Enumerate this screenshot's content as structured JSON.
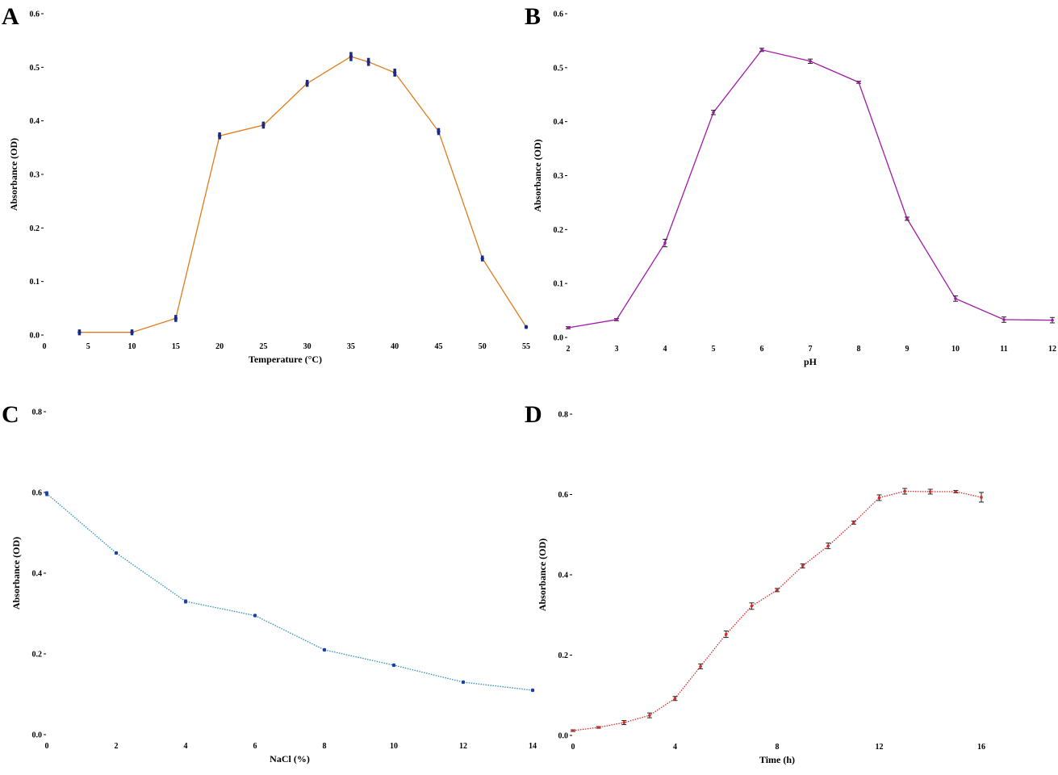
{
  "chart_data": [
    {
      "panel": "A",
      "type": "line",
      "xlabel": "Temperature (°C)",
      "ylabel": "Absorbance (OD)",
      "xlim": [
        0,
        55
      ],
      "ylim": [
        0,
        0.6
      ],
      "xticks": [
        0,
        5,
        10,
        15,
        20,
        25,
        30,
        35,
        40,
        45,
        50,
        55
      ],
      "xtick_labels": [
        "0",
        "5",
        "10",
        "15",
        "20",
        "25",
        "30",
        "35",
        "40",
        "45",
        "50",
        "55"
      ],
      "yticks": [
        0,
        0.1,
        0.2,
        0.3,
        0.4,
        0.5,
        0.6
      ],
      "ytick_labels": [
        "0.0",
        "0.1",
        "0.2",
        "0.3",
        "0.4",
        "0.5",
        "0.6"
      ],
      "color": "#e07b1b",
      "marker_color": "#1a2a8a",
      "x": [
        4,
        10,
        15,
        20,
        25,
        30,
        35,
        37,
        40,
        45,
        50,
        55
      ],
      "y": [
        0.005,
        0.005,
        0.031,
        0.372,
        0.392,
        0.47,
        0.52,
        0.51,
        0.49,
        0.38,
        0.143,
        0.015
      ],
      "err": [
        0.004,
        0.004,
        0.005,
        0.005,
        0.005,
        0.005,
        0.007,
        0.006,
        0.006,
        0.005,
        0.004,
        0.002
      ]
    },
    {
      "panel": "B",
      "type": "line",
      "xlabel": "pH",
      "ylabel": "Absorbance (OD)",
      "xlim": [
        2,
        12
      ],
      "ylim": [
        0,
        0.6
      ],
      "xticks": [
        2,
        3,
        4,
        5,
        6,
        7,
        8,
        9,
        10,
        11,
        12
      ],
      "xtick_labels": [
        "2",
        "3",
        "4",
        "5",
        "6",
        "7",
        "8",
        "9",
        "10",
        "11",
        "12"
      ],
      "yticks": [
        0,
        0.1,
        0.2,
        0.3,
        0.4,
        0.5,
        0.6
      ],
      "ytick_labels": [
        "0.0",
        "0.1",
        "0.2",
        "0.3",
        "0.4",
        "0.5",
        "0.6"
      ],
      "color": "#a01aa6",
      "marker_color": "#222222",
      "x": [
        2,
        3,
        4,
        5,
        6,
        7,
        8,
        9,
        10,
        11,
        12
      ],
      "y": [
        0.018,
        0.033,
        0.175,
        0.417,
        0.533,
        0.512,
        0.473,
        0.22,
        0.072,
        0.033,
        0.032
      ],
      "err": [
        0.002,
        0.002,
        0.007,
        0.004,
        0.003,
        0.004,
        0.002,
        0.003,
        0.005,
        0.005,
        0.005
      ]
    },
    {
      "panel": "C",
      "type": "line",
      "xlabel": "NaCl (%)",
      "ylabel": "Absorbance (OD)",
      "xlim": [
        0,
        14
      ],
      "ylim": [
        0,
        0.8
      ],
      "xticks": [
        0,
        2,
        4,
        6,
        8,
        10,
        12,
        14
      ],
      "xtick_labels": [
        "0",
        "2",
        "4",
        "6",
        "8",
        "10",
        "12",
        "14"
      ],
      "yticks": [
        0,
        0.2,
        0.4,
        0.6,
        0.8
      ],
      "ytick_labels": [
        "0.0",
        "0.2",
        "0.4",
        "0.6",
        "0.8"
      ],
      "color": "#2a8fb5",
      "marker_color": "#1a3fa8",
      "x": [
        0,
        2,
        4,
        6,
        8,
        10,
        12,
        14
      ],
      "y": [
        0.597,
        0.45,
        0.33,
        0.295,
        0.21,
        0.172,
        0.13,
        0.11
      ],
      "err": [
        0.004,
        0.002,
        0.003,
        0.002,
        0.002,
        0.002,
        0.002,
        0.002
      ]
    },
    {
      "panel": "D",
      "type": "line",
      "xlabel": "Time (h)",
      "ylabel": "Absorbance (OD)",
      "xlim": [
        0,
        16
      ],
      "ylim": [
        0,
        0.8
      ],
      "xticks": [
        0,
        4,
        8,
        12,
        16
      ],
      "xtick_labels": [
        "0",
        "4",
        "8",
        "12",
        "16"
      ],
      "yticks": [
        0,
        0.2,
        0.4,
        0.6,
        0.8
      ],
      "ytick_labels": [
        "0.0",
        "0.2",
        "0.4",
        "0.6",
        "0.8"
      ],
      "color": "#d42a2a",
      "marker_color": "#222222",
      "x": [
        0,
        1,
        2,
        3,
        4,
        5,
        6,
        7,
        8,
        9,
        10,
        11,
        12,
        13,
        14,
        15,
        16
      ],
      "y": [
        0.012,
        0.02,
        0.032,
        0.05,
        0.092,
        0.172,
        0.252,
        0.322,
        0.362,
        0.422,
        0.472,
        0.53,
        0.592,
        0.608,
        0.607,
        0.607,
        0.593
      ],
      "err": [
        0.002,
        0.002,
        0.005,
        0.006,
        0.005,
        0.006,
        0.008,
        0.008,
        0.004,
        0.005,
        0.007,
        0.004,
        0.007,
        0.007,
        0.006,
        0.003,
        0.012
      ]
    }
  ]
}
